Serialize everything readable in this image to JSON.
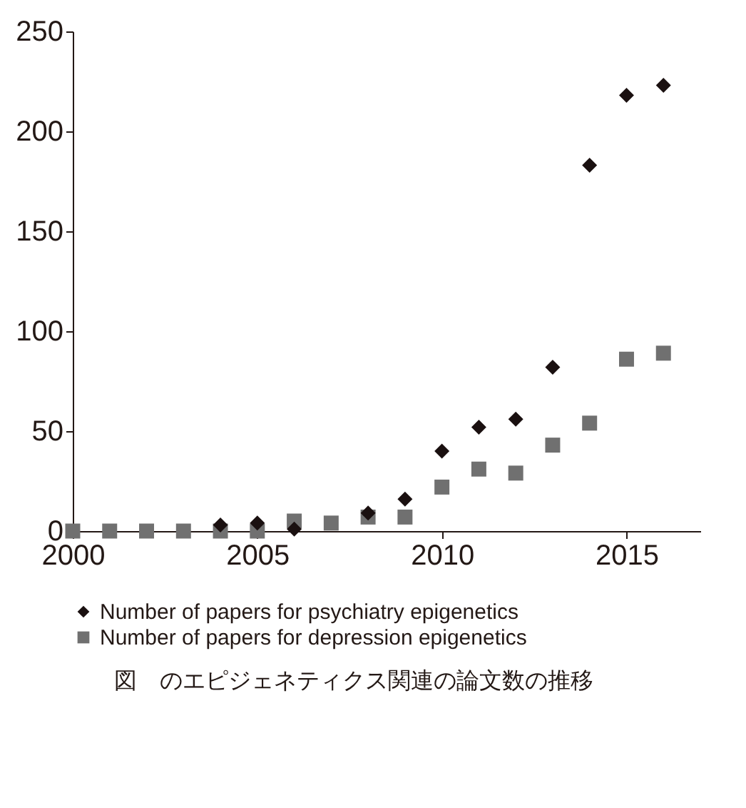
{
  "chart_data": {
    "type": "scatter",
    "x": [
      2000,
      2001,
      2002,
      2003,
      2004,
      2005,
      2006,
      2007,
      2008,
      2009,
      2010,
      2011,
      2012,
      2013,
      2014,
      2015,
      2016
    ],
    "series": [
      {
        "name": "Number of papers for psychiatry epigenetics",
        "color": "#1a1010",
        "marker": "diamond",
        "values": [
          null,
          null,
          null,
          null,
          3,
          4,
          1,
          null,
          9,
          16,
          40,
          52,
          56,
          82,
          183,
          218,
          223
        ]
      },
      {
        "name": "Number of papers for depression epigenetics",
        "color": "#707070",
        "marker": "square",
        "values": [
          0,
          0,
          0,
          0,
          0,
          0,
          5,
          4,
          7,
          7,
          22,
          31,
          29,
          43,
          54,
          86,
          89
        ]
      }
    ],
    "xlim": [
      2000,
      2017
    ],
    "xticks": [
      2000,
      2005,
      2010,
      2015
    ],
    "ylim": [
      0,
      250
    ],
    "yticks": [
      0,
      50,
      100,
      150,
      200,
      250
    ],
    "grid": false,
    "legend": "bottom",
    "annotations": [
      "図　のエピジェネティクス関連の論文数の推移"
    ]
  }
}
